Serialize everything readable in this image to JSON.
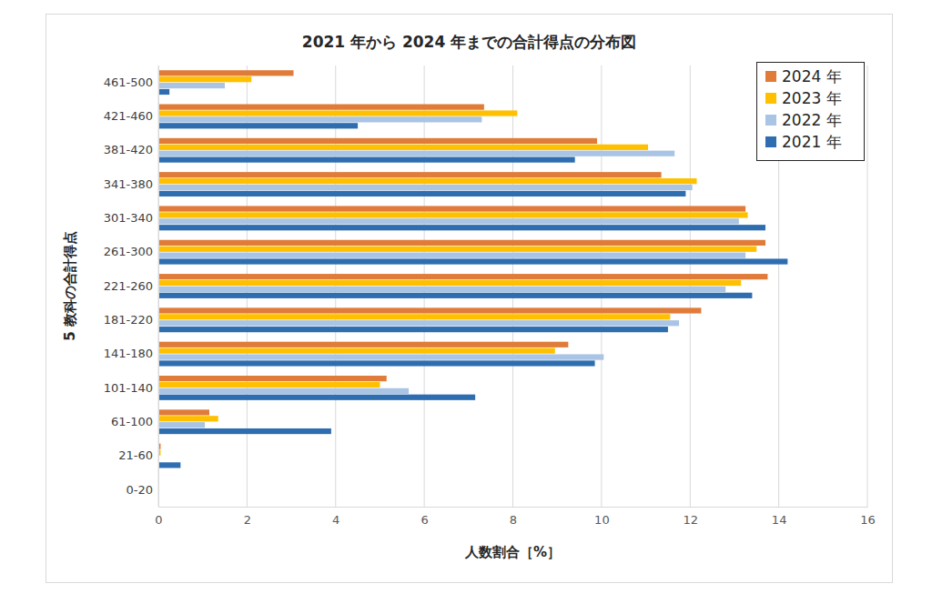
{
  "chart_data": {
    "type": "bar",
    "orientation": "horizontal",
    "title": "2021 年から 2024 年までの合計得点の分布図",
    "x_label": "人数割合［%］",
    "y_label": "5 教科の合計得点",
    "categories": [
      "0-20",
      "21-60",
      "61-100",
      "101-140",
      "141-180",
      "181-220",
      "221-260",
      "261-300",
      "301-340",
      "341-380",
      "381-420",
      "421-460",
      "461-500"
    ],
    "series": [
      {
        "name": "2024 年",
        "color": "#e07b39",
        "values": [
          0,
          0.05,
          1.15,
          5.15,
          9.25,
          12.25,
          13.75,
          13.7,
          13.25,
          11.35,
          9.9,
          7.35,
          3.05
        ]
      },
      {
        "name": "2023 年",
        "color": "#ffc000",
        "values": [
          0,
          0.05,
          1.35,
          5.0,
          8.95,
          11.55,
          13.15,
          13.5,
          13.3,
          12.15,
          11.05,
          8.1,
          2.1
        ]
      },
      {
        "name": "2022 年",
        "color": "#a9c4e4",
        "values": [
          0,
          0,
          1.05,
          5.65,
          10.05,
          11.75,
          12.8,
          13.25,
          13.1,
          12.05,
          11.65,
          7.3,
          1.5
        ]
      },
      {
        "name": "2021 年",
        "color": "#2e6eb0",
        "values": [
          0,
          0.5,
          3.9,
          7.15,
          9.85,
          11.5,
          13.4,
          14.2,
          13.7,
          11.9,
          9.4,
          4.5,
          0.25
        ]
      }
    ],
    "xlim": [
      0,
      16
    ],
    "xticks": [
      0,
      2,
      4,
      6,
      8,
      10,
      12,
      14,
      16
    ],
    "grid": true,
    "legend": "top-right"
  }
}
